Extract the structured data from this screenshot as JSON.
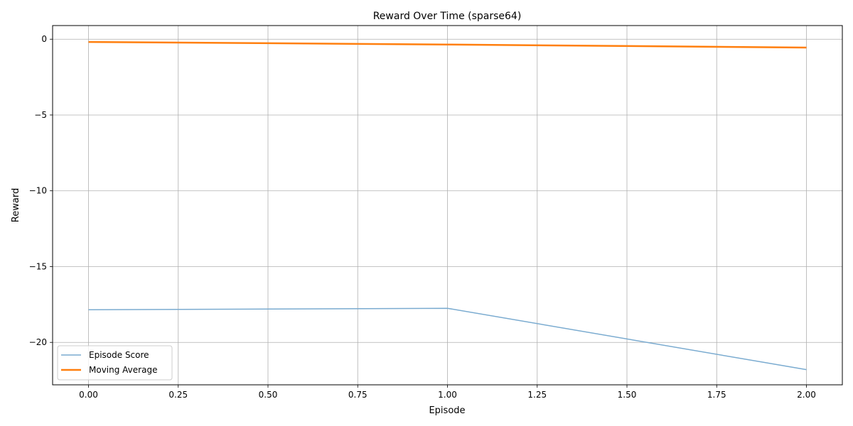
{
  "chart_data": {
    "type": "line",
    "title": "Reward Over Time (sparse64)",
    "xlabel": "Episode",
    "ylabel": "Reward",
    "xlim": [
      -0.1,
      2.1
    ],
    "ylim": [
      -22.8,
      0.9
    ],
    "x_ticks": [
      0,
      0.25,
      0.5,
      0.75,
      1,
      1.25,
      1.5,
      1.75,
      2
    ],
    "x_tick_labels": [
      "0.00",
      "0.25",
      "0.50",
      "0.75",
      "1.00",
      "1.25",
      "1.50",
      "1.75",
      "2.00"
    ],
    "y_ticks": [
      0,
      -5,
      -10,
      -15,
      -20
    ],
    "y_tick_labels": [
      "0",
      "−5",
      "−10",
      "−15",
      "−20"
    ],
    "grid": true,
    "legend_position": "lower-left",
    "series": [
      {
        "name": "Episode Score",
        "color": "#7aabd0",
        "x": [
          0,
          1,
          2
        ],
        "values": [
          -17.85,
          -17.75,
          -21.8
        ]
      },
      {
        "name": "Moving Average",
        "color": "#ff7f0e",
        "x": [
          0,
          1,
          2
        ],
        "values": [
          -0.18,
          -0.35,
          -0.55
        ]
      }
    ]
  }
}
